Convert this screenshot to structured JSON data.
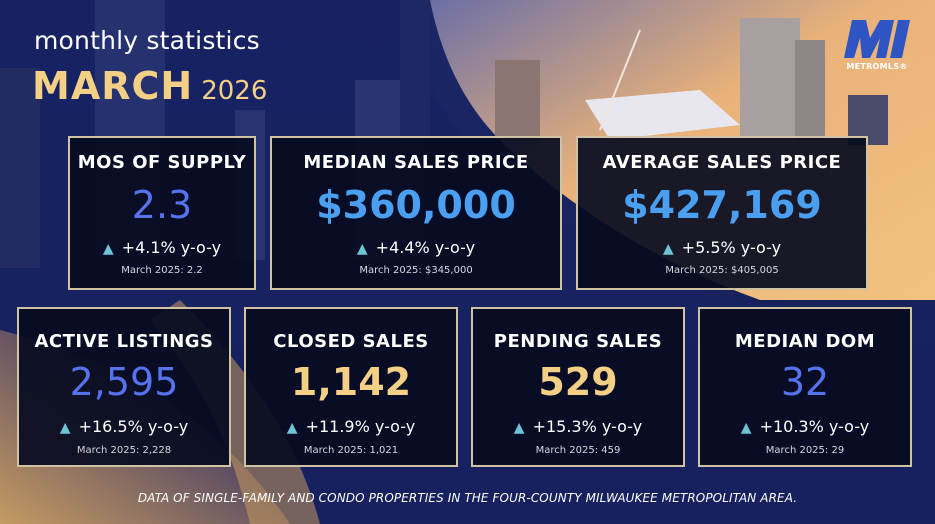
{
  "header": {
    "subtitle": "monthly statistics",
    "month": "MARCH",
    "year": "2026"
  },
  "logo": {
    "text": "METROMLS®",
    "icon": "metromls-logo-icon",
    "color": "#2f55c4"
  },
  "colors": {
    "gold": "#f4cf86",
    "blue": "#5672ec",
    "cyan": "#4a9ff0",
    "card_border": "#cfc3a4",
    "triangle": "#6fc3d6"
  },
  "cards": [
    {
      "title": "MOS OF SUPPLY",
      "value": "2.3",
      "change": "+4.1% y-o-y",
      "previous": "March 2025: 2.2"
    },
    {
      "title": "MEDIAN SALES PRICE",
      "value": "$360,000",
      "change": "+4.4% y-o-y",
      "previous": "March 2025: $345,000"
    },
    {
      "title": "AVERAGE SALES PRICE",
      "value": "$427,169",
      "change": "+5.5% y-o-y",
      "previous": "March 2025: $405,005"
    },
    {
      "title": "ACTIVE LISTINGS",
      "value": "2,595",
      "change": "+16.5% y-o-y",
      "previous": "March 2025: 2,228"
    },
    {
      "title": "CLOSED SALES",
      "value": "1,142",
      "change": "+11.9% y-o-y",
      "previous": "March 2025: 1,021"
    },
    {
      "title": "PENDING SALES",
      "value": "529",
      "change": "+15.3% y-o-y",
      "previous": "March 2025: 459"
    },
    {
      "title": "MEDIAN DOM",
      "value": "32",
      "change": "+10.3% y-o-y",
      "previous": "March 2025: 29"
    }
  ],
  "trend_icon": "triangle-up-icon",
  "footnote": "DATA OF SINGLE-FAMILY AND CONDO PROPERTIES IN THE FOUR-COUNTY MILWAUKEE METROPOLITAN AREA."
}
